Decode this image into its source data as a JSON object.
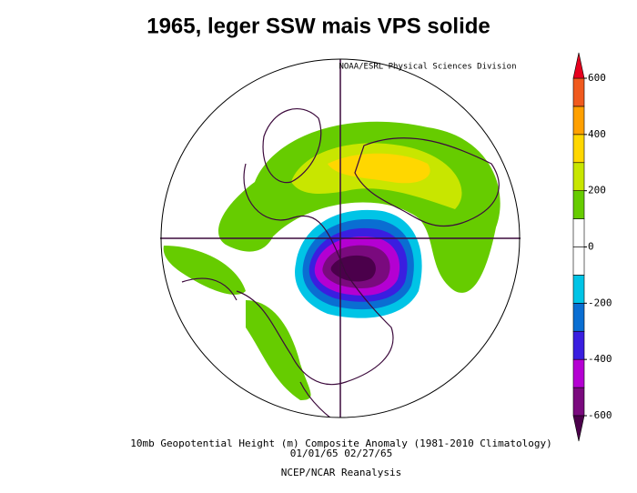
{
  "title": "1965, leger SSW mais VPS solide",
  "attribution": "NOAA/ESRL Physical Sciences Division",
  "caption": [
    "10mb Geopotential Height (m) Composite Anomaly (1981-2010 Climatology)",
    "01/01/65 02/27/65",
    "NCEP/NCAR Reanalysis"
  ],
  "colorbar": {
    "levels": [
      -600,
      -500,
      -400,
      -300,
      -200,
      -100,
      0,
      100,
      200,
      300,
      400,
      500,
      600
    ],
    "colors": [
      "#7a0a7e",
      "#b400d2",
      "#3a1ee0",
      "#0a6ed2",
      "#00c4e6",
      "#ffffff",
      "#ffffff",
      "#66cc00",
      "#c8e600",
      "#ffd700",
      "#ffa000",
      "#f05a1e"
    ],
    "under_color": "#4b004b",
    "over_color": "#e6001e",
    "ticks": [
      600,
      400,
      200,
      0,
      -200,
      -400,
      -600
    ]
  }
}
